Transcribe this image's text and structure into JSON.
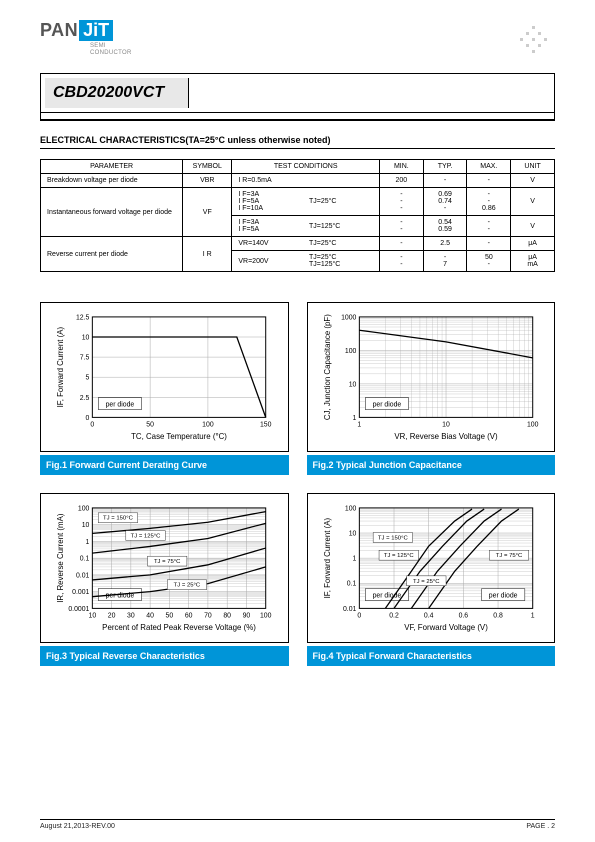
{
  "logo": {
    "pan": "PAN",
    "jit": "JiT",
    "sub1": "SEMI",
    "sub2": "CONDUCTOR"
  },
  "part_number": "CBD20200VCT",
  "section_title": "ELECTRICAL  CHARACTERISTICS(TA=25°C unless otherwise noted)",
  "table": {
    "headers": [
      "PARAMETER",
      "SYMBOL",
      "TEST CONDITIONS",
      "MIN.",
      "TYP.",
      "MAX.",
      "UNIT"
    ],
    "rows": [
      {
        "param": "Breakdown voltage per diode",
        "sym": "VBR",
        "cond": "I R=0.5mA",
        "min": "200",
        "typ": "-",
        "max": "-",
        "unit": "V"
      },
      {
        "param": "Instantaneous forward voltage per diode",
        "sym": "VF",
        "cond1": "I F=3A\nI F=5A\nI F=10A",
        "tj1": "TJ=25°C",
        "cond2": "I F=3A\nI F=5A",
        "tj2": "TJ=125°C",
        "min1": "-\n-\n-",
        "typ1": "0.69\n0.74\n-",
        "max1": "-\n-\n0.86",
        "unit1": "V",
        "min2": "-\n-",
        "typ2": "0.54\n0.59",
        "max2": "-\n-",
        "unit2": "V"
      },
      {
        "param": "Reverse current per diode",
        "sym": "I R",
        "cond1": "VR=140V",
        "tj1": "TJ=25°C",
        "min1": "-",
        "typ1": "2.5",
        "max1": "-",
        "unit1": "μA",
        "cond2": "VR=200V",
        "tj2": "TJ=25°C\nTJ=125°C",
        "min2": "-\n-",
        "typ2": "-\n7",
        "max2": "50\n-",
        "unit2": "μA\nmA"
      }
    ]
  },
  "charts": {
    "fig1": {
      "caption": "Fig.1 Forward Current Derating Curve",
      "xlabel": "TC, Case Temperature (°C)",
      "ylabel": "IF, Forward Current (A)",
      "note": "per diode",
      "xlim": [
        0,
        150
      ],
      "ylim": [
        0,
        12.5
      ],
      "xticks": [
        0,
        50,
        100,
        150
      ],
      "yticks": [
        0,
        2.5,
        5,
        7.5,
        10,
        12.5
      ],
      "line": [
        [
          0,
          10
        ],
        [
          125,
          10
        ],
        [
          150,
          0
        ]
      ],
      "line_color": "#000000",
      "grid_color": "#aaaaaa",
      "bg": "#ffffff"
    },
    "fig2": {
      "caption": "Fig.2 Typical Junction Capacitance",
      "xlabel": "VR, Reverse Bias Voltage (V)",
      "ylabel": "CJ, Junction Capacitance (pF)",
      "note": "per diode",
      "xlim": [
        1,
        100
      ],
      "ylim": [
        1,
        1000
      ],
      "xticks_log": [
        1,
        10,
        100
      ],
      "yticks_log": [
        1,
        10,
        100,
        1000
      ],
      "line": [
        [
          1,
          400
        ],
        [
          10,
          180
        ],
        [
          100,
          60
        ]
      ],
      "line_color": "#000000",
      "grid_color": "#aaaaaa"
    },
    "fig3": {
      "caption": "Fig.3 Typical Reverse Characteristics",
      "xlabel": "Percent of Rated Peak Reverse Voltage (%)",
      "ylabel": "IR, Reverse Current (mA)",
      "note": "per diode",
      "xlim": [
        10,
        100
      ],
      "ylim": [
        0.0001,
        100
      ],
      "xticks": [
        10,
        20,
        30,
        40,
        50,
        60,
        70,
        80,
        90,
        100
      ],
      "yticks_log": [
        0.0001,
        0.001,
        0.01,
        0.1,
        1,
        10,
        100
      ],
      "curves": {
        "TJ = 25°C": [
          [
            10,
            0.0005
          ],
          [
            40,
            0.001
          ],
          [
            70,
            0.003
          ],
          [
            100,
            0.03
          ]
        ],
        "TJ = 75°C": [
          [
            10,
            0.005
          ],
          [
            40,
            0.01
          ],
          [
            70,
            0.04
          ],
          [
            100,
            0.4
          ]
        ],
        "TJ = 125°C": [
          [
            10,
            0.2
          ],
          [
            40,
            0.5
          ],
          [
            70,
            1.5
          ],
          [
            100,
            12
          ]
        ],
        "TJ = 150°C": [
          [
            10,
            3
          ],
          [
            40,
            6
          ],
          [
            70,
            14
          ],
          [
            100,
            60
          ]
        ]
      },
      "curve_labels": [
        "TJ = 150°C",
        "TJ = 125°C",
        "TJ = 75°C",
        "TJ = 25°C"
      ],
      "line_color": "#000000",
      "grid_color": "#aaaaaa"
    },
    "fig4": {
      "caption": "Fig.4 Typical Forward Characteristics",
      "xlabel": "VF, Forward Voltage (V)",
      "ylabel": "IF, Forward Current (A)",
      "note": "per diode",
      "xlim": [
        0,
        1
      ],
      "ylim": [
        0.01,
        100
      ],
      "xticks": [
        0,
        0.2,
        0.4,
        0.6,
        0.8,
        1
      ],
      "yticks_log": [
        0.01,
        0.1,
        1,
        10,
        100
      ],
      "curves": {
        "TJ = 150°C": [
          [
            0.15,
            0.01
          ],
          [
            0.3,
            0.3
          ],
          [
            0.4,
            3
          ],
          [
            0.55,
            30
          ],
          [
            0.65,
            90
          ]
        ],
        "TJ = 125°C": [
          [
            0.2,
            0.01
          ],
          [
            0.35,
            0.3
          ],
          [
            0.48,
            3
          ],
          [
            0.62,
            30
          ],
          [
            0.72,
            90
          ]
        ],
        "TJ = 75°C": [
          [
            0.3,
            0.01
          ],
          [
            0.45,
            0.3
          ],
          [
            0.58,
            3
          ],
          [
            0.72,
            30
          ],
          [
            0.82,
            90
          ]
        ],
        "TJ = 25°C": [
          [
            0.4,
            0.01
          ],
          [
            0.55,
            0.3
          ],
          [
            0.68,
            3
          ],
          [
            0.82,
            30
          ],
          [
            0.92,
            90
          ]
        ]
      },
      "curve_labels": [
        "TJ = 150°C",
        "TJ = 125°C",
        "TJ = 75°C",
        "TJ = 25°C"
      ],
      "line_color": "#000000",
      "grid_color": "#aaaaaa"
    }
  },
  "footer": {
    "left": "August 21,2013-REV.00",
    "right": "PAGE .  2"
  }
}
